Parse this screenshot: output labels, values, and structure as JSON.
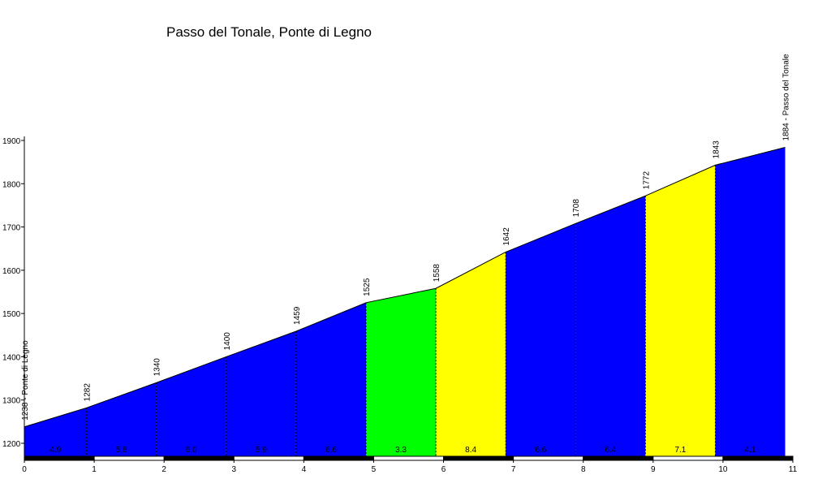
{
  "chart_data": {
    "type": "area",
    "title": "Passo del Tonale, Ponte di Legno",
    "xlabel": "",
    "ylabel": "",
    "xlim": [
      0,
      11
    ],
    "ylim": [
      1170,
      1930
    ],
    "x_ticks": [
      "0",
      "1",
      "2",
      "3",
      "4",
      "5",
      "6",
      "7",
      "8",
      "9",
      "10",
      "11"
    ],
    "y_ticks": [
      "1200",
      "1300",
      "1400",
      "1500",
      "1600",
      "1700",
      "1800",
      "1900"
    ],
    "x": [
      0,
      0.89,
      1.89,
      2.89,
      3.89,
      4.89,
      5.89,
      6.89,
      7.89,
      8.89,
      9.89,
      10.89
    ],
    "y": [
      1238,
      1282,
      1340,
      1400,
      1459,
      1525,
      1558,
      1642,
      1708,
      1772,
      1843,
      1884
    ],
    "point_labels": [
      "1238 - Ponte di Legno",
      "1282",
      "1340",
      "1400",
      "1459",
      "1525",
      "1558",
      "1642",
      "1708",
      "1772",
      "1843",
      "1884 - Passo del Tonale"
    ],
    "segment_gradients": [
      "4.9",
      "5.8",
      "6.0",
      "5.9",
      "6.6",
      "3.3",
      "8.4",
      "6.6",
      "6.4",
      "7.1",
      "4.1"
    ],
    "colors": {
      "blue": "#0000ff",
      "green": "#00ff00",
      "yellow": "#ffff00"
    },
    "segment_colors": [
      "blue",
      "blue",
      "blue",
      "blue",
      "blue",
      "green",
      "yellow",
      "blue",
      "blue",
      "yellow",
      "blue"
    ]
  }
}
